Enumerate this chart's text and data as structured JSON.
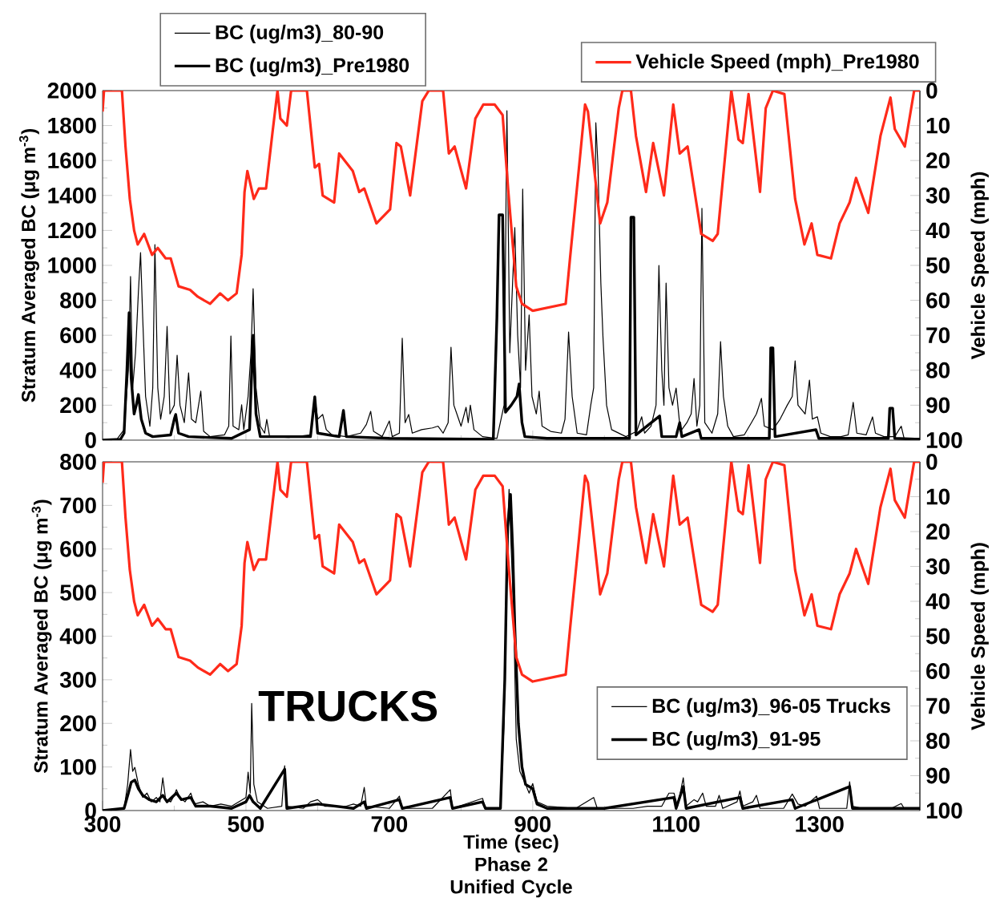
{
  "chart_data": [
    {
      "type": "line",
      "ylabel": "Stratum Averaged BC (μg m$^{-3}$)",
      "y2label": "Vehicle Speed (mph)",
      "xlim": [
        300,
        1440
      ],
      "xticks": [
        300,
        500,
        700,
        900,
        1100,
        1300
      ],
      "ylim": [
        0,
        2000
      ],
      "yticks": [
        0,
        200,
        400,
        600,
        800,
        1000,
        1200,
        1400,
        1600,
        1800,
        2000
      ],
      "y2lim": [
        100,
        0
      ],
      "y2ticks": [
        0,
        10,
        20,
        30,
        40,
        50,
        60,
        70,
        80,
        90,
        100
      ],
      "tick_labels": "y",
      "legend": "top",
      "line_style": "solid",
      "series": [
        {
          "name": "BC (ug/m3)_80-90",
          "color": "#000000",
          "x": [
            300,
            320,
            330,
            336,
            339,
            342,
            346,
            350,
            353,
            356,
            360,
            366,
            370,
            373,
            377,
            381,
            386,
            390,
            394,
            400,
            404,
            408,
            414,
            420,
            424,
            430,
            437,
            441,
            450,
            470,
            476,
            479,
            482,
            490,
            494,
            497,
            503,
            507,
            510,
            514,
            520,
            526,
            529,
            533,
            560,
            590,
            596,
            600,
            607,
            612,
            620,
            640,
            660,
            668,
            674,
            678,
            690,
            700,
            704,
            714,
            718,
            722,
            727,
            732,
            745,
            760,
            768,
            775,
            782,
            786,
            790,
            800,
            807,
            810,
            813,
            818,
            830,
            850,
            860,
            864,
            868,
            875,
            879,
            883,
            886,
            890,
            895,
            899,
            905,
            909,
            913,
            925,
            940,
            945,
            950,
            955,
            962,
            975,
            981,
            985,
            988,
            991,
            995,
            998,
            1003,
            1010,
            1030,
            1045,
            1052,
            1056,
            1065,
            1072,
            1076,
            1080,
            1083,
            1086,
            1090,
            1095,
            1100,
            1106,
            1115,
            1121,
            1125,
            1129,
            1133,
            1136,
            1140,
            1150,
            1158,
            1162,
            1166,
            1172,
            1180,
            1195,
            1205,
            1212,
            1219,
            1223,
            1235,
            1245,
            1255,
            1262,
            1266,
            1270,
            1280,
            1286,
            1290,
            1297,
            1302,
            1315,
            1330,
            1340,
            1347,
            1352,
            1365,
            1374,
            1378,
            1390,
            1405,
            1414,
            1418,
            1430,
            1440
          ],
          "values": [
            0,
            5,
            60,
            400,
            936,
            300,
            500,
            850,
            1073,
            700,
            250,
            80,
            300,
            1119,
            300,
            120,
            250,
            651,
            150,
            200,
            486,
            200,
            100,
            385,
            120,
            100,
            280,
            50,
            20,
            30,
            80,
            596,
            80,
            60,
            202,
            60,
            250,
            500,
            867,
            300,
            80,
            40,
            119,
            20,
            15,
            30,
            248,
            120,
            147,
            60,
            30,
            20,
            40,
            90,
            165,
            50,
            20,
            110,
            20,
            40,
            583,
            100,
            147,
            40,
            60,
            70,
            80,
            40,
            100,
            532,
            200,
            80,
            188,
            100,
            200,
            60,
            20,
            10,
            200,
            1885,
            500,
            1216,
            600,
            300,
            1436,
            400,
            716,
            250,
            150,
            280,
            80,
            50,
            40,
            120,
            619,
            250,
            40,
            30,
            202,
            300,
            1816,
            1569,
            900,
            587,
            200,
            60,
            20,
            50,
            134,
            40,
            80,
            200,
            1000,
            400,
            200,
            899,
            300,
            200,
            298,
            50,
            100,
            150,
            353,
            80,
            200,
            1326,
            100,
            40,
            150,
            564,
            250,
            80,
            20,
            30,
            100,
            150,
            239,
            80,
            60,
            120,
            200,
            250,
            454,
            200,
            150,
            344,
            120,
            134,
            40,
            20,
            20,
            30,
            216,
            40,
            30,
            133,
            40,
            20,
            20,
            80,
            10,
            10,
            10
          ]
        },
        {
          "name": "BC (ug/m3)_Pre1980",
          "color": "#000000",
          "x": [
            300,
            325,
            330,
            334,
            337,
            340,
            344,
            347,
            350,
            354,
            360,
            370,
            395,
            400,
            402,
            406,
            420,
            480,
            505,
            510,
            514,
            520,
            590,
            596,
            600,
            630,
            636,
            640,
            700,
            845,
            850,
            853,
            858,
            862,
            870,
            878,
            881,
            885,
            889,
            920,
            1035,
            1037,
            1041,
            1044,
            1077,
            1080,
            1100,
            1105,
            1108,
            1132,
            1135,
            1230,
            1232,
            1235,
            1238,
            1295,
            1299,
            1396,
            1398,
            1402,
            1405,
            1440
          ],
          "values": [
            0,
            5,
            40,
            400,
            729,
            350,
            150,
            200,
            261,
            120,
            40,
            20,
            30,
            120,
            147,
            40,
            20,
            10,
            60,
            600,
            150,
            20,
            20,
            248,
            40,
            20,
            170,
            20,
            10,
            5,
            700,
            1289,
            1289,
            160,
            200,
            250,
            321,
            100,
            20,
            10,
            10,
            1275,
            1275,
            30,
            138,
            20,
            20,
            100,
            20,
            60,
            10,
            10,
            528,
            528,
            20,
            60,
            10,
            10,
            183,
            183,
            10,
            5
          ]
        },
        {
          "name": "Vehicle Speed (mph)_Pre1980",
          "color": "#ff2a1a",
          "axis": "y2",
          "x": [
            300,
            302,
            327,
            332,
            338,
            344,
            349,
            358,
            369,
            377,
            388,
            395,
            406,
            422,
            433,
            450,
            464,
            475,
            487,
            494,
            498,
            502,
            511,
            518,
            528,
            537,
            544,
            548,
            557,
            563,
            585,
            596,
            602,
            607,
            623,
            630,
            649,
            658,
            665,
            682,
            701,
            710,
            716,
            729,
            746,
            755,
            775,
            783,
            791,
            807,
            820,
            831,
            847,
            858,
            866,
            877,
            885,
            900,
            946,
            952,
            965,
            973,
            977,
            994,
            1004,
            1020,
            1025,
            1037,
            1044,
            1058,
            1068,
            1083,
            1096,
            1105,
            1116,
            1135,
            1151,
            1158,
            1177,
            1187,
            1193,
            1201,
            1217,
            1225,
            1235,
            1251,
            1266,
            1279,
            1289,
            1297,
            1316,
            1328,
            1342,
            1351,
            1368,
            1385,
            1399,
            1405,
            1419,
            1432,
            1440
          ],
          "values": [
            6,
            0,
            0,
            16,
            31,
            40,
            44,
            41,
            47,
            45,
            48,
            48,
            56,
            57,
            59,
            61,
            58,
            60,
            58,
            47,
            29,
            23,
            31,
            28,
            28,
            12,
            0,
            8,
            10,
            0,
            0,
            22,
            21,
            30,
            32,
            18,
            23,
            29,
            28,
            38,
            34,
            15,
            16,
            30,
            3,
            0,
            0,
            18,
            16,
            28,
            8,
            4,
            4,
            7,
            29,
            56,
            61,
            63,
            61,
            48,
            21,
            4,
            6,
            38,
            32,
            5,
            0,
            0,
            13,
            29,
            15,
            30,
            4,
            18,
            16,
            41,
            43,
            41,
            0,
            14,
            15,
            1,
            29,
            5,
            0,
            1,
            31,
            44,
            38,
            47,
            48,
            38,
            32,
            25,
            35,
            13,
            2,
            11,
            16,
            0,
            0
          ]
        }
      ]
    },
    {
      "type": "line",
      "xlabel": "Time (sec) Phase 2 Unified Cycle",
      "ylabel": "Stratum Averaged BC (μg m$^{-3}$)",
      "y2label": "Vehicle Speed (mph)",
      "annotations": [
        "TRUCKS"
      ],
      "xlim": [
        300,
        1440
      ],
      "xticks": [
        300,
        500,
        700,
        900,
        1100,
        1300
      ],
      "ylim": [
        0,
        800
      ],
      "yticks": [
        0,
        100,
        200,
        300,
        400,
        500,
        600,
        700,
        800
      ],
      "y2lim": [
        100,
        0
      ],
      "y2ticks": [
        0,
        10,
        20,
        30,
        40,
        50,
        60,
        70,
        80,
        90,
        100
      ],
      "legend": "bottom right",
      "line_style": "solid",
      "series": [
        {
          "name": "BC (ug/m3)_96-05 Trucks",
          "color": "#000000",
          "x": [
            300,
            330,
            335,
            339,
            342,
            345,
            350,
            356,
            362,
            368,
            375,
            380,
            384,
            388,
            395,
            400,
            403,
            408,
            415,
            423,
            428,
            440,
            450,
            465,
            480,
            500,
            503,
            506,
            508,
            511,
            516,
            530,
            550,
            554,
            557,
            580,
            590,
            600,
            610,
            640,
            650,
            660,
            665,
            668,
            700,
            714,
            718,
            760,
            785,
            788,
            830,
            834,
            855,
            860,
            864,
            867,
            870,
            873,
            877,
            882,
            890,
            895,
            900,
            906,
            920,
            960,
            985,
            990,
            1040,
            1060,
            1080,
            1090,
            1097,
            1102,
            1110,
            1114,
            1125,
            1130,
            1137,
            1142,
            1155,
            1160,
            1165,
            1185,
            1189,
            1193,
            1207,
            1212,
            1217,
            1250,
            1262,
            1270,
            1280,
            1296,
            1300,
            1338,
            1342,
            1346,
            1360,
            1400,
            1414,
            1418,
            1440
          ],
          "values": [
            0,
            5,
            60,
            140,
            90,
            99,
            60,
            30,
            40,
            20,
            30,
            20,
            75,
            25,
            20,
            35,
            48,
            30,
            20,
            40,
            15,
            20,
            10,
            15,
            10,
            30,
            88,
            40,
            246,
            60,
            20,
            5,
            10,
            103,
            10,
            5,
            20,
            25,
            10,
            10,
            15,
            10,
            53,
            10,
            5,
            33,
            5,
            5,
            48,
            5,
            28,
            5,
            5,
            200,
            600,
            737,
            600,
            474,
            164,
            90,
            60,
            40,
            62,
            20,
            10,
            5,
            30,
            5,
            5,
            10,
            10,
            40,
            40,
            10,
            75,
            10,
            25,
            20,
            40,
            10,
            10,
            35,
            5,
            20,
            45,
            10,
            20,
            35,
            5,
            5,
            38,
            15,
            10,
            33,
            5,
            5,
            66,
            10,
            5,
            5,
            16,
            5,
            5
          ]
        },
        {
          "name": "BC (ug/m3)_91-95",
          "color": "#000000",
          "x": [
            300,
            330,
            336,
            340,
            345,
            350,
            356,
            365,
            375,
            384,
            390,
            403,
            410,
            423,
            430,
            450,
            480,
            500,
            505,
            510,
            520,
            554,
            557,
            600,
            650,
            665,
            668,
            714,
            718,
            785,
            788,
            830,
            834,
            855,
            861,
            865,
            869,
            872,
            875,
            880,
            885,
            890,
            900,
            906,
            920,
            1000,
            1097,
            1100,
            1110,
            1114,
            1189,
            1193,
            1262,
            1266,
            1342,
            1346,
            1440
          ],
          "values": [
            0,
            5,
            40,
            65,
            70,
            50,
            35,
            25,
            20,
            35,
            20,
            40,
            25,
            30,
            10,
            10,
            5,
            20,
            35,
            20,
            5,
            95,
            5,
            15,
            5,
            20,
            5,
            25,
            5,
            30,
            5,
            20,
            5,
            5,
            300,
            650,
            725,
            600,
            420,
            200,
            100,
            60,
            50,
            15,
            5,
            5,
            30,
            5,
            55,
            5,
            30,
            5,
            25,
            5,
            55,
            5,
            5
          ]
        },
        {
          "color": "#ff2a1a",
          "axis": "y2",
          "x": [
            300,
            302,
            327,
            332,
            338,
            344,
            349,
            358,
            369,
            377,
            388,
            395,
            406,
            422,
            433,
            450,
            464,
            475,
            487,
            494,
            498,
            502,
            511,
            518,
            528,
            537,
            544,
            548,
            557,
            563,
            585,
            596,
            602,
            607,
            623,
            630,
            649,
            658,
            665,
            682,
            701,
            710,
            716,
            729,
            746,
            755,
            775,
            783,
            791,
            807,
            820,
            831,
            847,
            858,
            866,
            877,
            885,
            900,
            946,
            952,
            965,
            973,
            977,
            994,
            1004,
            1020,
            1025,
            1037,
            1044,
            1058,
            1068,
            1083,
            1096,
            1105,
            1116,
            1135,
            1151,
            1158,
            1177,
            1187,
            1193,
            1201,
            1217,
            1225,
            1235,
            1251,
            1266,
            1279,
            1289,
            1297,
            1316,
            1328,
            1342,
            1351,
            1368,
            1385,
            1399,
            1405,
            1419,
            1432,
            1440
          ],
          "values": [
            6,
            0,
            0,
            16,
            31,
            40,
            44,
            41,
            47,
            45,
            48,
            48,
            56,
            57,
            59,
            61,
            58,
            60,
            58,
            47,
            29,
            23,
            31,
            28,
            28,
            12,
            0,
            8,
            10,
            0,
            0,
            22,
            21,
            30,
            32,
            18,
            23,
            29,
            28,
            38,
            34,
            15,
            16,
            30,
            3,
            0,
            0,
            18,
            16,
            28,
            8,
            4,
            4,
            7,
            29,
            56,
            61,
            63,
            61,
            48,
            21,
            4,
            6,
            38,
            32,
            5,
            0,
            0,
            13,
            29,
            15,
            30,
            4,
            18,
            16,
            41,
            43,
            41,
            0,
            14,
            15,
            1,
            29,
            5,
            0,
            1,
            31,
            44,
            38,
            47,
            48,
            38,
            32,
            25,
            35,
            13,
            2,
            11,
            16,
            0,
            0
          ]
        }
      ]
    }
  ]
}
